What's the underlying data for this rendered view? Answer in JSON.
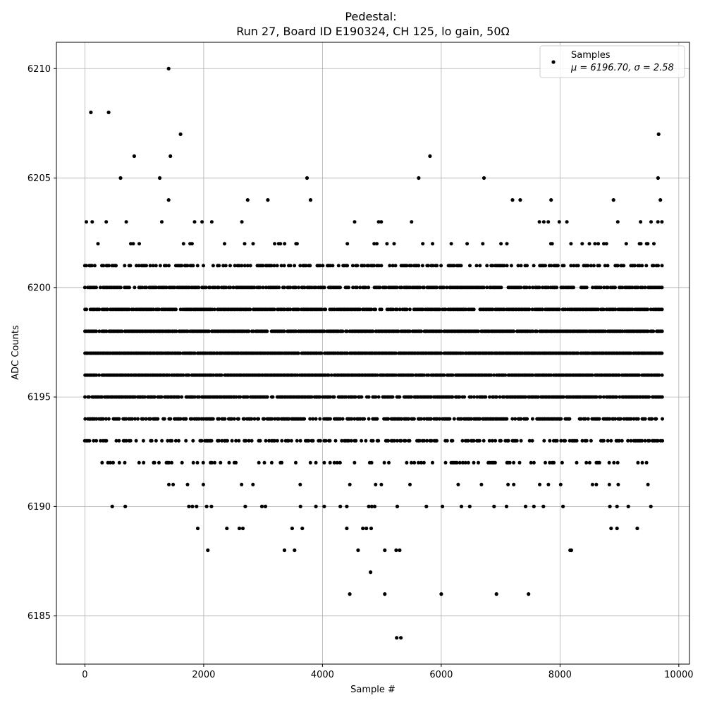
{
  "chart_data": {
    "type": "scatter",
    "title": "Pedestal:",
    "subtitle": "Run 27, Board ID E190324, CH 125, lo gain, 50Ω",
    "xlabel": "Sample #",
    "ylabel": "ADC Counts",
    "xlim": [
      -480,
      10180
    ],
    "ylim": [
      6182.8,
      6211.2
    ],
    "xticks": [
      0,
      2000,
      4000,
      6000,
      8000,
      10000
    ],
    "yticks": [
      6185,
      6190,
      6195,
      6200,
      6205,
      6210
    ],
    "grid": true,
    "legend": {
      "placement": "top-right",
      "series_name": "Samples",
      "stats_label": "μ = 6196.70, σ = 2.58"
    },
    "marker_color": "#000000",
    "n_samples": 9728,
    "mean": 6196.7,
    "sigma": 2.58,
    "dense_levels": [
      {
        "y": 6191,
        "x_min": 0,
        "x_max": 9720,
        "density": 0.06
      },
      {
        "y": 6192,
        "x_min": 0,
        "x_max": 9720,
        "density": 0.22
      },
      {
        "y": 6193,
        "x_min": 0,
        "x_max": 9720,
        "density": 0.45
      },
      {
        "y": 6194,
        "x_min": 0,
        "x_max": 9720,
        "density": 0.7
      },
      {
        "y": 6195,
        "x_min": 0,
        "x_max": 9720,
        "density": 0.85
      },
      {
        "y": 6196,
        "x_min": 0,
        "x_max": 9720,
        "density": 0.95
      },
      {
        "y": 6197,
        "x_min": 0,
        "x_max": 9720,
        "density": 0.97
      },
      {
        "y": 6198,
        "x_min": 0,
        "x_max": 9720,
        "density": 0.93
      },
      {
        "y": 6199,
        "x_min": 0,
        "x_max": 9720,
        "density": 0.85
      },
      {
        "y": 6200,
        "x_min": 0,
        "x_max": 9720,
        "density": 0.72
      },
      {
        "y": 6201,
        "x_min": 0,
        "x_max": 9720,
        "density": 0.48
      },
      {
        "y": 6202,
        "x_min": 0,
        "x_max": 9720,
        "density": 0.12
      },
      {
        "y": 6203,
        "x_min": 0,
        "x_max": 9720,
        "density": 0.05
      }
    ],
    "outliers": [
      {
        "x": 1410,
        "y": 6210
      },
      {
        "x": 100,
        "y": 6208
      },
      {
        "x": 400,
        "y": 6208
      },
      {
        "x": 1610,
        "y": 6207
      },
      {
        "x": 9660,
        "y": 6207
      },
      {
        "x": 830,
        "y": 6206
      },
      {
        "x": 1440,
        "y": 6206
      },
      {
        "x": 5810,
        "y": 6206
      },
      {
        "x": 600,
        "y": 6205
      },
      {
        "x": 1260,
        "y": 6205
      },
      {
        "x": 3740,
        "y": 6205
      },
      {
        "x": 5620,
        "y": 6205
      },
      {
        "x": 6720,
        "y": 6205
      },
      {
        "x": 9650,
        "y": 6205
      },
      {
        "x": 1410,
        "y": 6204
      },
      {
        "x": 2740,
        "y": 6204
      },
      {
        "x": 3080,
        "y": 6204
      },
      {
        "x": 3800,
        "y": 6204
      },
      {
        "x": 7200,
        "y": 6204
      },
      {
        "x": 7330,
        "y": 6204
      },
      {
        "x": 7850,
        "y": 6204
      },
      {
        "x": 8900,
        "y": 6204
      },
      {
        "x": 9690,
        "y": 6204
      },
      {
        "x": 460,
        "y": 6190
      },
      {
        "x": 680,
        "y": 6190
      },
      {
        "x": 1750,
        "y": 6190
      },
      {
        "x": 1810,
        "y": 6190
      },
      {
        "x": 1880,
        "y": 6190
      },
      {
        "x": 2050,
        "y": 6190
      },
      {
        "x": 2130,
        "y": 6190
      },
      {
        "x": 2700,
        "y": 6190
      },
      {
        "x": 2980,
        "y": 6190
      },
      {
        "x": 3040,
        "y": 6190
      },
      {
        "x": 3630,
        "y": 6190
      },
      {
        "x": 3890,
        "y": 6190
      },
      {
        "x": 4030,
        "y": 6190
      },
      {
        "x": 4300,
        "y": 6190
      },
      {
        "x": 4410,
        "y": 6190
      },
      {
        "x": 4780,
        "y": 6190
      },
      {
        "x": 4830,
        "y": 6190
      },
      {
        "x": 4880,
        "y": 6190
      },
      {
        "x": 5260,
        "y": 6190
      },
      {
        "x": 5750,
        "y": 6190
      },
      {
        "x": 6020,
        "y": 6190
      },
      {
        "x": 6340,
        "y": 6190
      },
      {
        "x": 6480,
        "y": 6190
      },
      {
        "x": 6890,
        "y": 6190
      },
      {
        "x": 7100,
        "y": 6190
      },
      {
        "x": 7420,
        "y": 6190
      },
      {
        "x": 7560,
        "y": 6190
      },
      {
        "x": 7720,
        "y": 6190
      },
      {
        "x": 8050,
        "y": 6190
      },
      {
        "x": 8840,
        "y": 6190
      },
      {
        "x": 8960,
        "y": 6190
      },
      {
        "x": 9150,
        "y": 6190
      },
      {
        "x": 9530,
        "y": 6190
      },
      {
        "x": 1900,
        "y": 6189
      },
      {
        "x": 2390,
        "y": 6189
      },
      {
        "x": 2600,
        "y": 6189
      },
      {
        "x": 2660,
        "y": 6189
      },
      {
        "x": 3490,
        "y": 6189
      },
      {
        "x": 3660,
        "y": 6189
      },
      {
        "x": 4410,
        "y": 6189
      },
      {
        "x": 4680,
        "y": 6189
      },
      {
        "x": 4740,
        "y": 6189
      },
      {
        "x": 4820,
        "y": 6189
      },
      {
        "x": 8860,
        "y": 6189
      },
      {
        "x": 8960,
        "y": 6189
      },
      {
        "x": 9300,
        "y": 6189
      },
      {
        "x": 2070,
        "y": 6188
      },
      {
        "x": 3360,
        "y": 6188
      },
      {
        "x": 3530,
        "y": 6188
      },
      {
        "x": 4600,
        "y": 6188
      },
      {
        "x": 5050,
        "y": 6188
      },
      {
        "x": 5240,
        "y": 6188
      },
      {
        "x": 5300,
        "y": 6188
      },
      {
        "x": 8170,
        "y": 6188
      },
      {
        "x": 8190,
        "y": 6188
      },
      {
        "x": 4810,
        "y": 6187
      },
      {
        "x": 4460,
        "y": 6186
      },
      {
        "x": 5050,
        "y": 6186
      },
      {
        "x": 6000,
        "y": 6186
      },
      {
        "x": 6930,
        "y": 6186
      },
      {
        "x": 7470,
        "y": 6186
      },
      {
        "x": 5250,
        "y": 6184
      },
      {
        "x": 5320,
        "y": 6184
      }
    ]
  }
}
